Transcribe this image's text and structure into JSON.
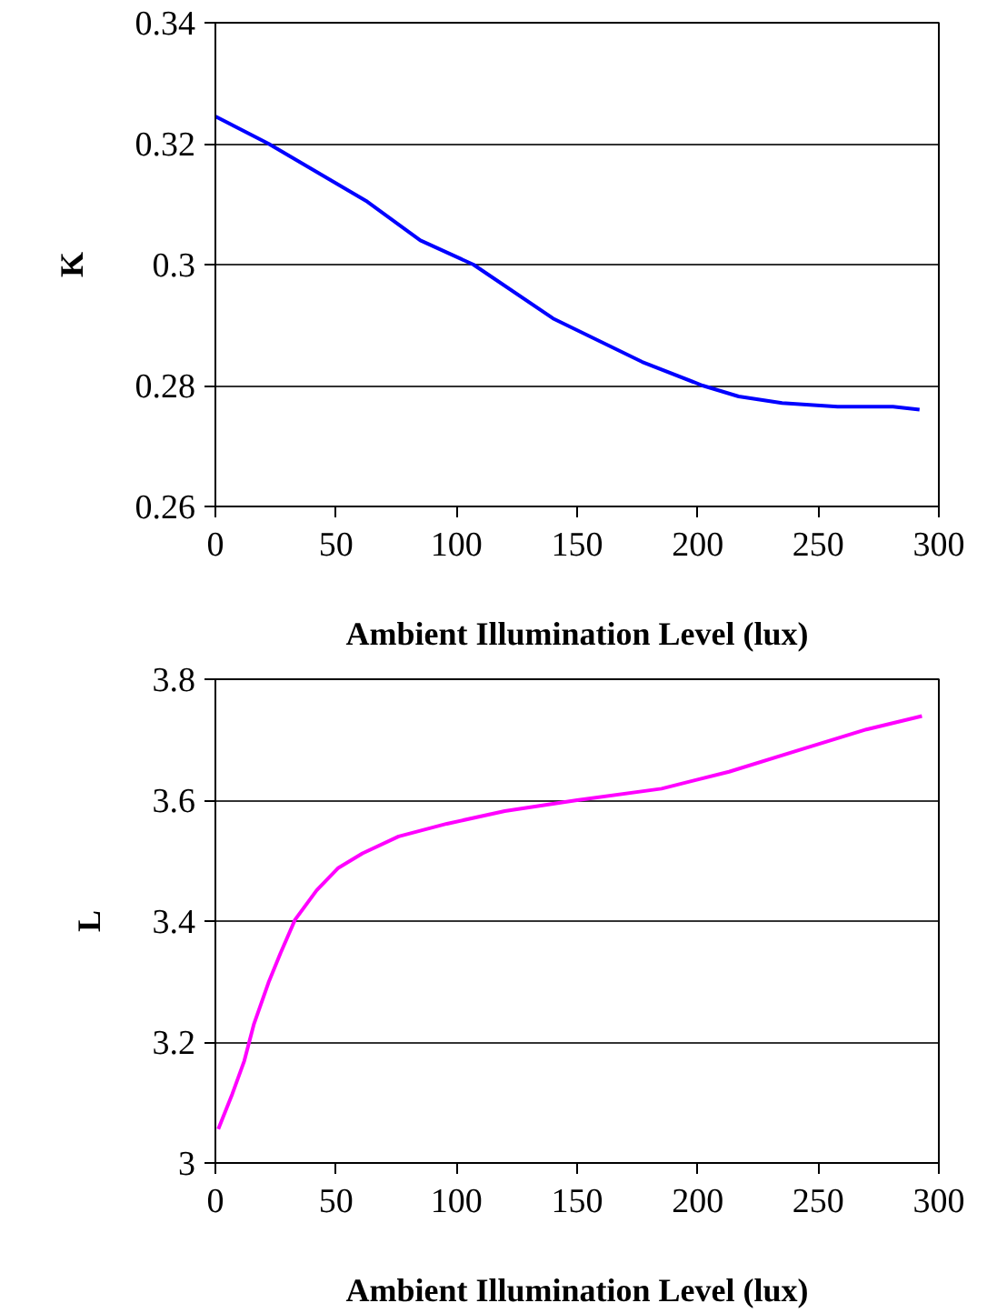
{
  "chart_data": [
    {
      "type": "line",
      "xlabel": "Ambient Illumination Level (lux)",
      "ylabel": "K",
      "x": [
        0,
        22,
        40,
        63,
        85,
        107,
        140,
        177,
        202,
        217,
        235,
        258,
        281,
        292
      ],
      "series": [
        {
          "color": "#0000ff",
          "values": [
            0.3245,
            0.32,
            0.3158,
            0.3104,
            0.304,
            0.3,
            0.2911,
            0.2839,
            0.28,
            0.2782,
            0.2771,
            0.2765,
            0.2765,
            0.276
          ]
        }
      ],
      "xlim": [
        0,
        300
      ],
      "ylim": [
        0.26,
        0.34
      ],
      "xticks": [
        0,
        50,
        100,
        150,
        200,
        250,
        300
      ],
      "yticks": [
        0.26,
        0.28,
        {
          "value": 0.3,
          "label": "0.3"
        },
        0.32,
        0.34
      ],
      "grid": "y"
    },
    {
      "type": "line",
      "xlabel": "Ambient Illumination Level (lux)",
      "ylabel": "L",
      "x": [
        1.2,
        7,
        12,
        16,
        22,
        27,
        33,
        42,
        51,
        61,
        76,
        96,
        120,
        150,
        185,
        213,
        243,
        270,
        293
      ],
      "series": [
        {
          "color": "#ff00ff",
          "values": [
            3.056,
            3.114,
            3.169,
            3.23,
            3.298,
            3.347,
            3.402,
            3.451,
            3.488,
            3.512,
            3.54,
            3.561,
            3.582,
            3.6,
            3.619,
            3.647,
            3.684,
            3.717,
            3.739
          ]
        }
      ],
      "xlim": [
        0,
        300
      ],
      "ylim": [
        3,
        3.8
      ],
      "xticks": [
        0,
        50,
        100,
        150,
        200,
        250,
        300
      ],
      "yticks": [
        {
          "value": 3,
          "label": "3"
        },
        3.2,
        3.4,
        3.6,
        3.8
      ],
      "grid": "y"
    }
  ]
}
